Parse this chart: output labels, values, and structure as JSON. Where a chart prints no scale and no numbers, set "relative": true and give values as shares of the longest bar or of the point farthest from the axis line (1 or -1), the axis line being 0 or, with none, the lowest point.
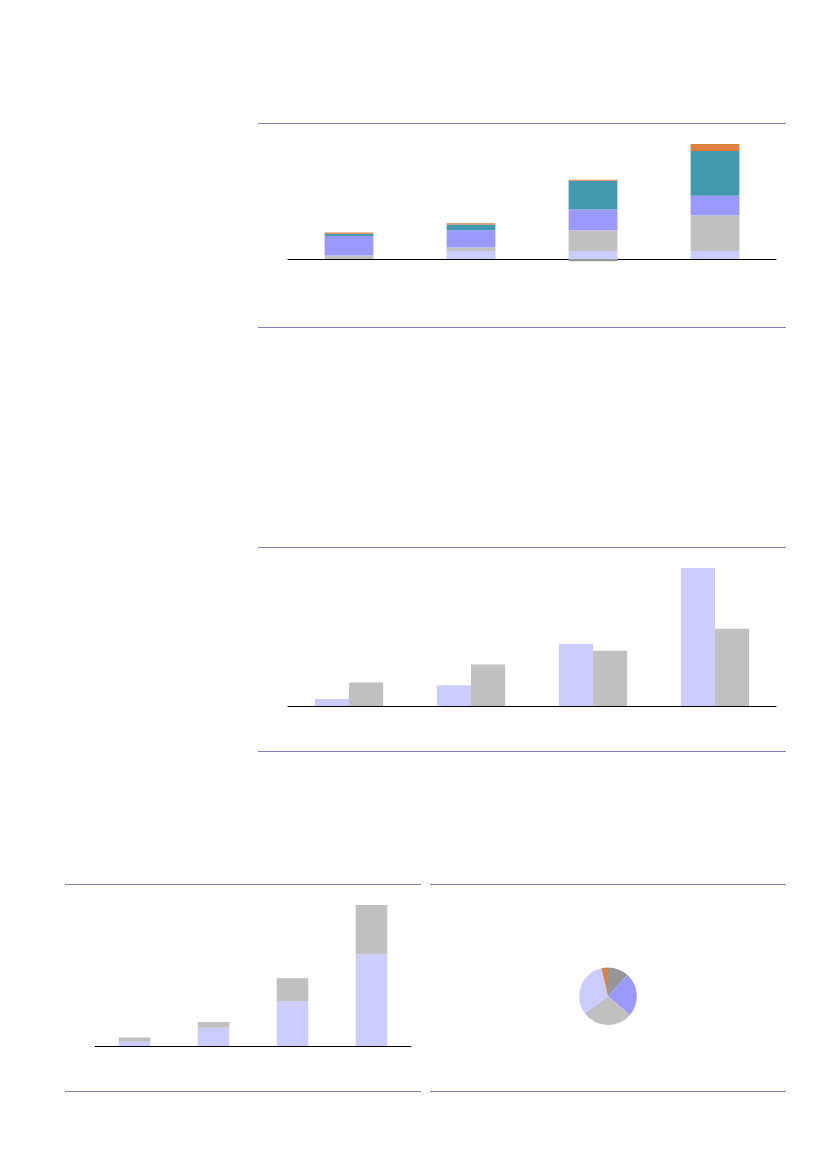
{
  "chart_data": [
    {
      "type": "bar",
      "stacked": true,
      "relative": true,
      "categories": [
        null,
        null,
        null,
        null
      ],
      "series": [
        {
          "color": "#ccccff",
          "values": [
            0,
            0.07,
            0.07,
            0.07
          ]
        },
        {
          "color": "#c0c0c0",
          "values": [
            0.03,
            0.03,
            0.18,
            0.31
          ]
        },
        {
          "color": "#9999ff",
          "values": [
            0.17,
            0.15,
            0.18,
            0.17
          ]
        },
        {
          "color": "#969696",
          "values": [
            0,
            0,
            -0.02,
            0
          ]
        },
        {
          "color": "#4299b0",
          "values": [
            0.02,
            0.05,
            0.25,
            0.39
          ]
        },
        {
          "color": "#dd8040",
          "values": [
            0.01,
            0.01,
            0.01,
            0.06
          ]
        }
      ]
    },
    {
      "type": "bar",
      "relative": true,
      "categories": [
        null,
        null,
        null,
        null
      ],
      "series": [
        {
          "color": "#ccccff",
          "values": [
            0.05,
            0.15,
            0.45,
            1
          ]
        },
        {
          "color": "#c0c0c0",
          "values": [
            0.17,
            0.3,
            0.4,
            0.56
          ]
        }
      ]
    },
    {
      "type": "bar",
      "stacked": true,
      "relative": true,
      "categories": [
        null,
        null,
        null,
        null
      ],
      "series": [
        {
          "color": "#ccccff",
          "values": [
            0.03,
            0.13,
            0.32,
            0.65
          ]
        },
        {
          "color": "#c0c0c0",
          "values": [
            0.03,
            0.04,
            0.16,
            0.35
          ]
        }
      ]
    },
    {
      "type": "pie",
      "categories": [
        null,
        null,
        null,
        null,
        null,
        null
      ],
      "values": [
        11.9,
        24.4,
        27.9,
        0.3,
        31.9,
        3.6
      ],
      "colors": [
        "#969696",
        "#9999ff",
        "#c0c0c0",
        "#4060ff",
        "#ccccff",
        "#dd8040"
      ]
    }
  ]
}
